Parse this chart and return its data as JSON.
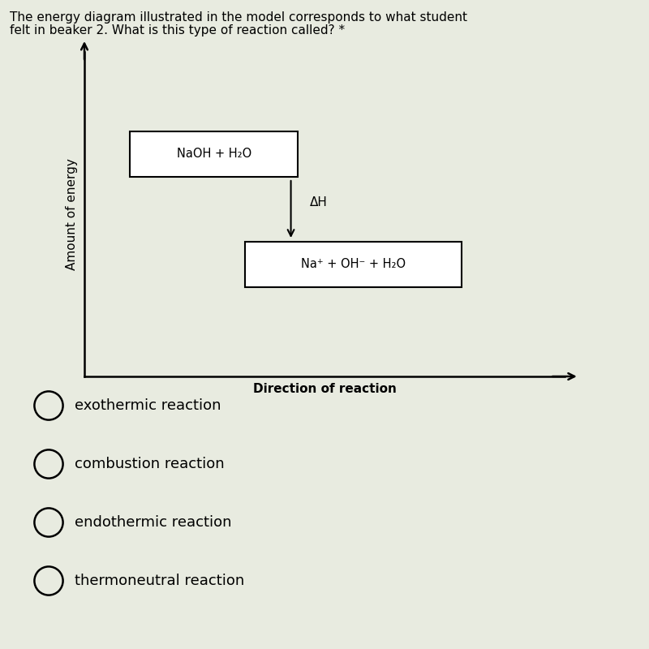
{
  "title_line1": "The energy diagram illustrated in the model corresponds to what student",
  "title_line2": "felt in beaker 2. What is this type of reaction called? *",
  "ylabel": "Amount of energy",
  "xlabel": "Direction of reaction",
  "reactant_label": "NaOH + H₂O",
  "product_label": "Na⁺ + OH⁻ + H₂O",
  "delta_h_label": "ΔH",
  "choices": [
    "exothermic reaction",
    "combustion reaction",
    "endothermic reaction",
    "thermoneutral reaction"
  ],
  "bg_color": "#e8ebe0",
  "box_color": "#ffffff",
  "text_color": "#000000",
  "title_fontsize": 11,
  "label_fontsize": 11,
  "choice_fontsize": 13
}
